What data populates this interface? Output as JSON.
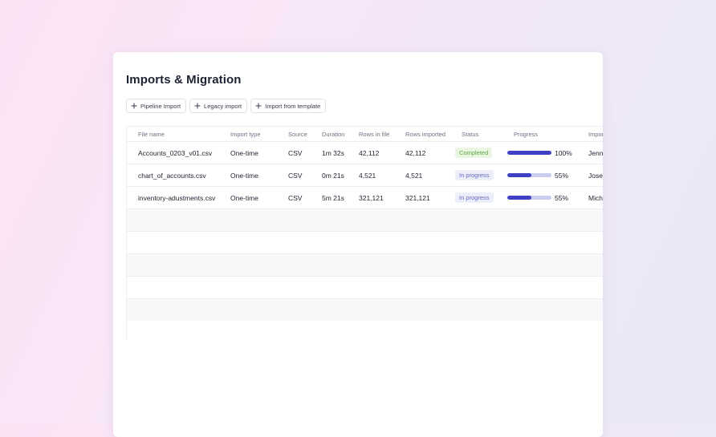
{
  "page": {
    "title": "Imports & Migration"
  },
  "actions": [
    {
      "label": "Pipeline Import",
      "icon": "plus-icon"
    },
    {
      "label": "Legacy import",
      "icon": "plus-icon"
    },
    {
      "label": "Import from template",
      "icon": "plus-icon"
    }
  ],
  "table": {
    "headers": [
      "File name",
      "Import type",
      "Source",
      "Duration",
      "Rows in file",
      "Rows imported",
      "Status",
      "Progress",
      "Imported by"
    ],
    "rows": [
      {
        "file": "Accounts_0203_v01.csv",
        "type": "One-time",
        "source": "CSV",
        "duration": "1m 32s",
        "rows_in_file": "42,112",
        "rows_imported": "42,112",
        "status": "Completed",
        "status_kind": "completed",
        "progress": 100,
        "progress_label": "100%",
        "by": "Jennifer"
      },
      {
        "file": "chart_of_accounts.csv",
        "type": "One-time",
        "source": "CSV",
        "duration": "0m 21s",
        "rows_in_file": "4,521",
        "rows_imported": "4,521",
        "status": "In progress",
        "status_kind": "progress",
        "progress": 55,
        "progress_label": "55%",
        "by": "Joseph"
      },
      {
        "file": "inventory-adustments.csv",
        "type": "One-time",
        "source": "CSV",
        "duration": "5m 21s",
        "rows_in_file": "321,121",
        "rows_imported": "321,121",
        "status": "In progress",
        "status_kind": "progress",
        "progress": 55,
        "progress_label": "55%",
        "by": "Michael"
      }
    ]
  },
  "colors": {
    "accent": "#3e3fc2",
    "accent_track": "#c9cbef",
    "completed_bg": "#eaf6e2",
    "completed_text": "#5aa83c",
    "progress_bg": "#eceef9",
    "progress_text": "#6668c8"
  }
}
